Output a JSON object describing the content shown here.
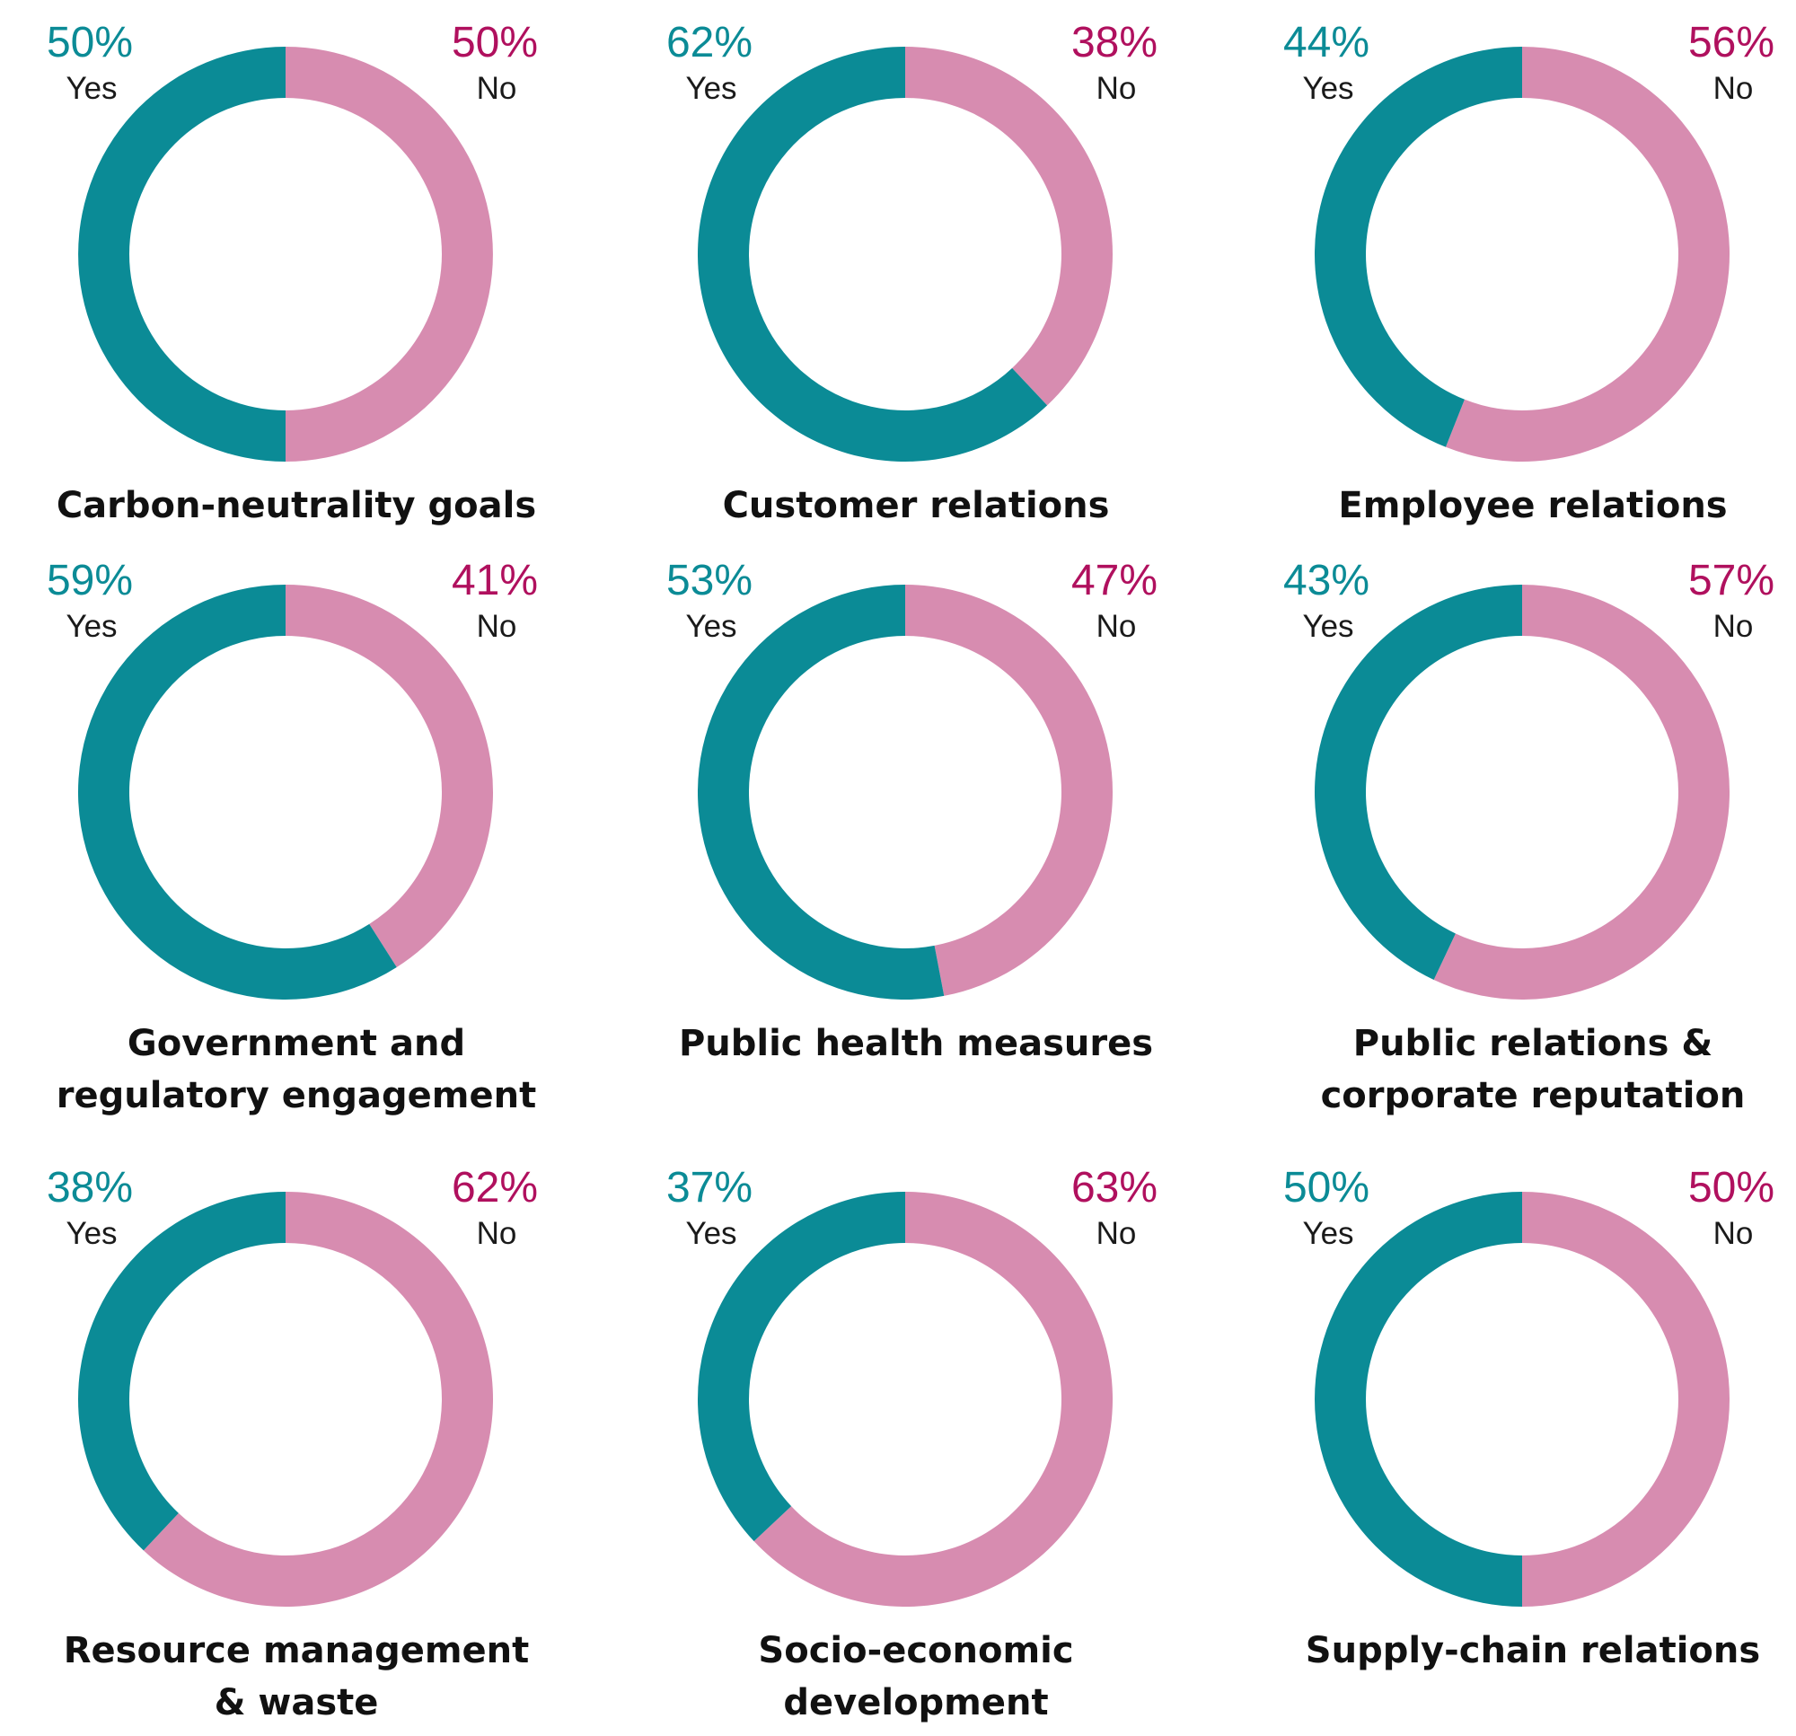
{
  "colors": {
    "yes": "#0b8b96",
    "no": "#d78cb0",
    "yes_text": "#0b8b96",
    "no_text": "#b0105e"
  },
  "legend": {
    "yes": "Yes",
    "no": "No"
  },
  "chart_data": [
    {
      "type": "pie",
      "title": [
        "Carbon-neutrality goals"
      ],
      "slices": [
        {
          "label": "Yes",
          "value": 50,
          "text": "50%"
        },
        {
          "label": "No",
          "value": 50,
          "text": "50%"
        }
      ]
    },
    {
      "type": "pie",
      "title": [
        "Customer relations"
      ],
      "slices": [
        {
          "label": "Yes",
          "value": 62,
          "text": "62%"
        },
        {
          "label": "No",
          "value": 38,
          "text": "38%"
        }
      ]
    },
    {
      "type": "pie",
      "title": [
        "Employee relations"
      ],
      "slices": [
        {
          "label": "Yes",
          "value": 44,
          "text": "44%"
        },
        {
          "label": "No",
          "value": 56,
          "text": "56%"
        }
      ]
    },
    {
      "type": "pie",
      "title": [
        "Government and",
        "regulatory engagement"
      ],
      "slices": [
        {
          "label": "Yes",
          "value": 59,
          "text": "59%"
        },
        {
          "label": "No",
          "value": 41,
          "text": "41%"
        }
      ]
    },
    {
      "type": "pie",
      "title": [
        "Public health measures"
      ],
      "slices": [
        {
          "label": "Yes",
          "value": 53,
          "text": "53%"
        },
        {
          "label": "No",
          "value": 47,
          "text": "47%"
        }
      ]
    },
    {
      "type": "pie",
      "title": [
        "Public relations &",
        "corporate reputation"
      ],
      "slices": [
        {
          "label": "Yes",
          "value": 43,
          "text": "43%"
        },
        {
          "label": "No",
          "value": 57,
          "text": "57%"
        }
      ]
    },
    {
      "type": "pie",
      "title": [
        "Resource management",
        "& waste"
      ],
      "slices": [
        {
          "label": "Yes",
          "value": 38,
          "text": "38%"
        },
        {
          "label": "No",
          "value": 62,
          "text": "62%"
        }
      ]
    },
    {
      "type": "pie",
      "title": [
        "Socio-economic",
        "development"
      ],
      "slices": [
        {
          "label": "Yes",
          "value": 37,
          "text": "37%"
        },
        {
          "label": "No",
          "value": 63,
          "text": "63%"
        }
      ]
    },
    {
      "type": "pie",
      "title": [
        "Supply-chain relations"
      ],
      "slices": [
        {
          "label": "Yes",
          "value": 50,
          "text": "50%"
        },
        {
          "label": "No",
          "value": 50,
          "text": "50%"
        }
      ]
    }
  ]
}
